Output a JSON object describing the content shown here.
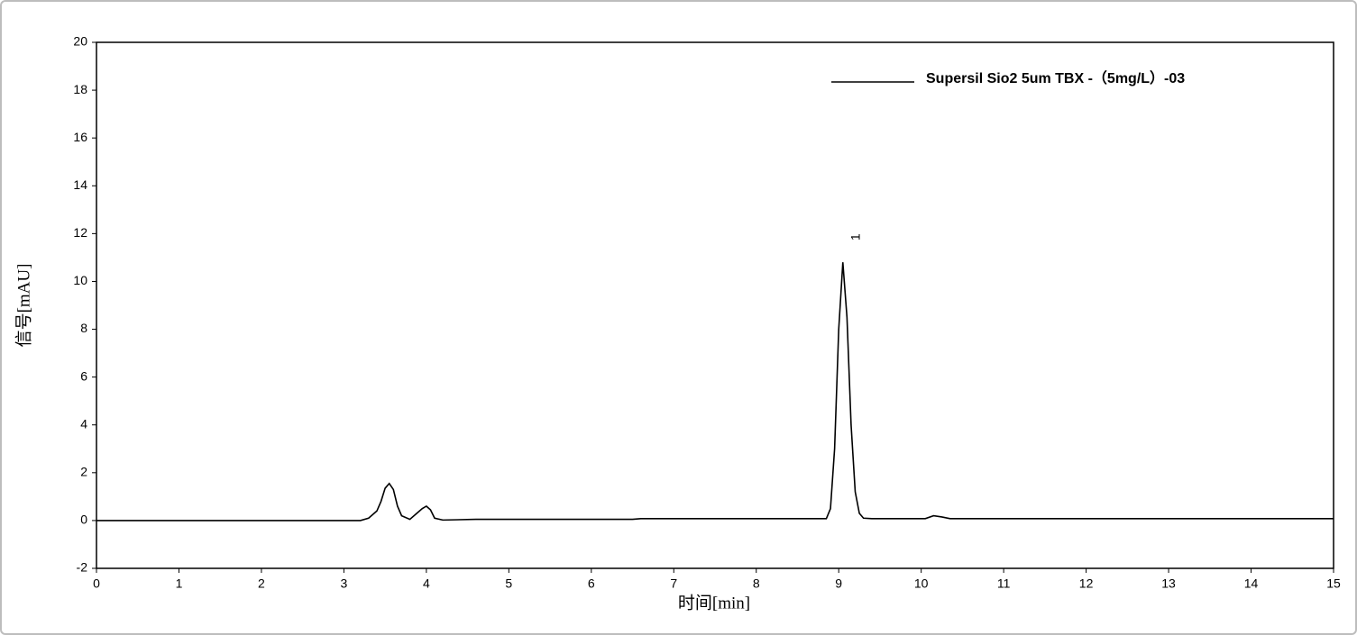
{
  "chart_data": {
    "type": "line",
    "x_label": "时间[min]",
    "y_label": "信号[mAU]",
    "x": [
      0,
      3.2,
      3.3,
      3.4,
      3.45,
      3.5,
      3.55,
      3.6,
      3.65,
      3.7,
      3.8,
      3.9,
      3.95,
      4.0,
      4.05,
      4.1,
      4.2,
      4.6,
      6.5,
      6.6,
      8.85,
      8.9,
      8.95,
      9.0,
      9.05,
      9.1,
      9.15,
      9.2,
      9.25,
      9.3,
      9.4,
      10.05,
      10.15,
      10.25,
      10.35,
      15
    ],
    "series": [
      {
        "name": "Supersil Sio2 5um TBX -（5mg/L）-03",
        "color": "#000000",
        "values": [
          0,
          0,
          0.1,
          0.4,
          0.8,
          1.35,
          1.55,
          1.3,
          0.6,
          0.2,
          0.05,
          0.35,
          0.5,
          0.6,
          0.45,
          0.1,
          0.02,
          0.05,
          0.05,
          0.08,
          0.08,
          0.5,
          3.0,
          8.0,
          10.8,
          8.5,
          4.0,
          1.2,
          0.3,
          0.1,
          0.08,
          0.08,
          0.2,
          0.15,
          0.08,
          0.08
        ]
      }
    ],
    "annotations": [
      {
        "text": "1"
      }
    ],
    "xlim": [
      0,
      15
    ],
    "xticks": [
      0,
      1,
      2,
      3,
      4,
      5,
      6,
      7,
      8,
      9,
      10,
      11,
      12,
      13,
      14,
      15
    ],
    "ylim": [
      -2,
      20
    ],
    "yticks": [
      -2,
      0,
      2,
      4,
      6,
      8,
      10,
      12,
      14,
      16,
      18,
      20
    ],
    "grid": false,
    "legend": "top-right"
  }
}
